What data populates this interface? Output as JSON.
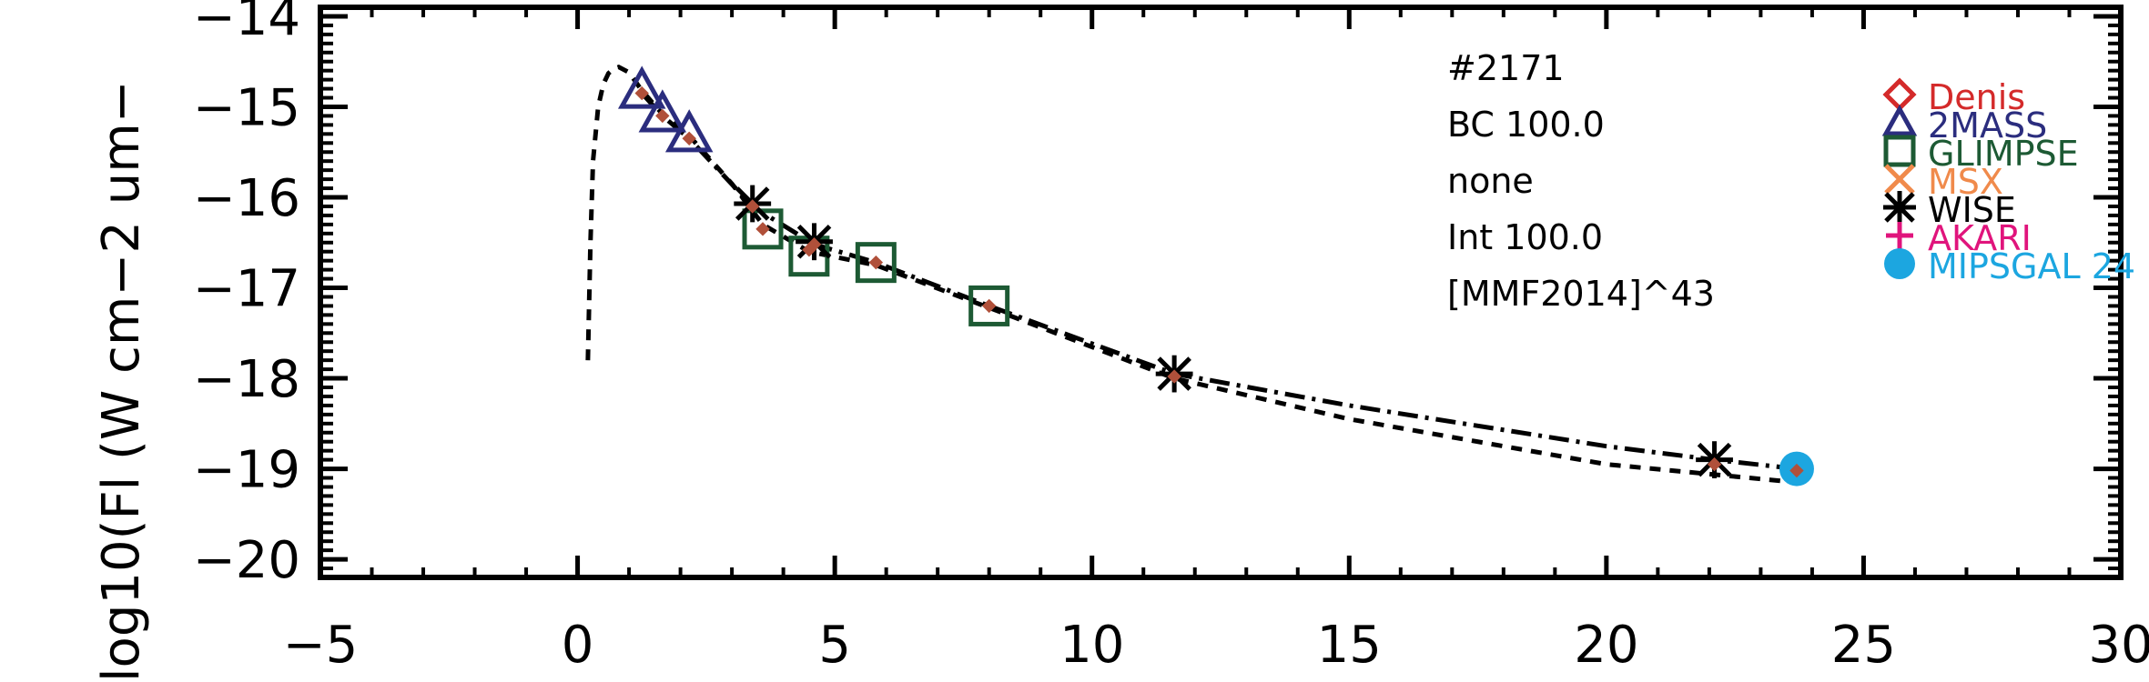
{
  "chart_data": {
    "type": "scatter",
    "ylabel": "log10(Fl (W cm−2 um−",
    "xlim": [
      -5,
      30
    ],
    "ylim": [
      -20.2,
      -13.9
    ],
    "x_ticks": [
      -5,
      0,
      5,
      10,
      15,
      20,
      25,
      30
    ],
    "x_tick_labels": [
      "−5",
      "0",
      "5",
      "10",
      "15",
      "20",
      "25",
      "30"
    ],
    "y_ticks": [
      -20,
      -19,
      -18,
      -17,
      -16,
      -15,
      -14
    ],
    "y_tick_labels": [
      "−20",
      "−19",
      "−18",
      "−17",
      "−16",
      "−15",
      "−14"
    ],
    "annotations": [
      "#2171",
      "BC 100.0",
      "none",
      "Int 100.0",
      "[MMF2014]^43"
    ],
    "legend_position": "top-right",
    "legend": [
      {
        "name": "Denis",
        "marker": "diamond",
        "color": "#d42a2a"
      },
      {
        "name": "2MASS",
        "marker": "triangle",
        "color": "#2b2d7e"
      },
      {
        "name": "GLIMPSE",
        "marker": "square",
        "color": "#1d5a34"
      },
      {
        "name": "MSX",
        "marker": "x",
        "color": "#f08a4b"
      },
      {
        "name": "WISE",
        "marker": "asterisk",
        "color": "#000000"
      },
      {
        "name": "AKARI",
        "marker": "plus",
        "color": "#e0147c"
      },
      {
        "name": "MIPSGAL 24",
        "marker": "circle",
        "color": "#1ca6e0"
      }
    ],
    "series": [
      {
        "name": "2MASS",
        "marker": "triangle",
        "color": "#2b2d7e",
        "x": [
          1.25,
          1.65,
          2.17
        ],
        "y": [
          -14.82,
          -15.08,
          -15.3
        ]
      },
      {
        "name": "GLIMPSE",
        "marker": "square",
        "color": "#1d5a34",
        "x": [
          3.6,
          4.5,
          5.8,
          8.0
        ],
        "y": [
          -16.35,
          -16.65,
          -16.72,
          -17.2
        ]
      },
      {
        "name": "WISE",
        "marker": "asterisk",
        "color": "#000000",
        "x": [
          3.4,
          4.6,
          11.6,
          22.1
        ],
        "y": [
          -16.07,
          -16.49,
          -17.95,
          -18.9
        ]
      },
      {
        "name": "MIPSGAL 24",
        "marker": "circle",
        "color": "#1ca6e0",
        "x": [
          23.7
        ],
        "y": [
          -19.0
        ]
      },
      {
        "name": "model",
        "marker": "diamond-small",
        "color": "#b0503a",
        "x": [
          1.25,
          1.65,
          2.17,
          3.4,
          3.6,
          4.5,
          4.6,
          5.8,
          8.0,
          11.6,
          22.1,
          23.7
        ],
        "y": [
          -14.85,
          -15.1,
          -15.35,
          -16.1,
          -16.35,
          -16.58,
          -16.52,
          -16.72,
          -17.2,
          -17.98,
          -18.95,
          -19.02
        ]
      }
    ],
    "lines": [
      {
        "style": "dashed",
        "color": "#000000",
        "x": [
          0.2,
          0.25,
          0.3,
          0.4,
          0.5,
          0.6,
          0.7,
          0.8,
          1.0,
          1.25,
          1.65,
          2.17,
          3.0,
          3.6,
          4.5,
          5.8,
          8.0,
          11.6,
          15.0,
          20.0,
          23.7
        ],
        "y": [
          -17.8,
          -16.5,
          -15.6,
          -15.0,
          -14.75,
          -14.63,
          -14.58,
          -14.56,
          -14.62,
          -14.82,
          -15.08,
          -15.32,
          -15.85,
          -16.3,
          -16.6,
          -16.75,
          -17.22,
          -18.0,
          -18.45,
          -18.95,
          -19.15
        ]
      },
      {
        "style": "dashdot",
        "color": "#000000",
        "x": [
          1.25,
          1.65,
          2.17,
          3.4,
          4.6,
          5.8,
          8.0,
          11.6,
          15.0,
          20.0,
          22.1,
          23.7
        ],
        "y": [
          -14.85,
          -15.1,
          -15.35,
          -16.1,
          -16.52,
          -16.72,
          -17.2,
          -17.95,
          -18.3,
          -18.75,
          -18.9,
          -19.0
        ]
      }
    ]
  }
}
